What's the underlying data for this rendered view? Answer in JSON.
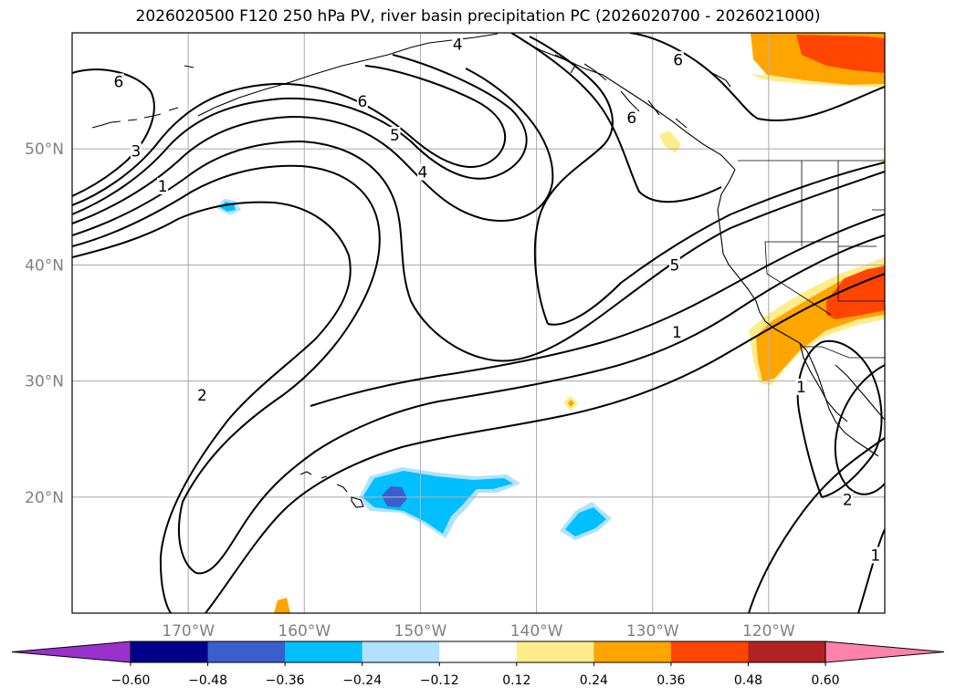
{
  "title": "2026020500 F120 250 hPa PV, river basin precipitation PC (2026020700 - 2026021000)",
  "chart_data": {
    "type": "map-contour",
    "title": "2026020500 F120 250 hPa PV, river basin precipitation PC (2026020700 - 2026021000)",
    "lon_range": [
      -180,
      -110
    ],
    "lat_range": [
      10,
      60
    ],
    "lat_ticks": [
      "20°N",
      "30°N",
      "40°N",
      "50°N"
    ],
    "lat_tick_values": [
      20,
      30,
      40,
      50
    ],
    "lon_ticks": [
      "170°W",
      "160°W",
      "150°W",
      "140°W",
      "130°W",
      "120°W"
    ],
    "lon_tick_values": [
      -170,
      -160,
      -150,
      -140,
      -130,
      -120
    ],
    "grid": true,
    "contour_variable": "250 hPa PV",
    "contour_levels": [
      1,
      2,
      3,
      4,
      5,
      6
    ],
    "contour_labels": [
      {
        "text": "6",
        "lon": -176,
        "lat": 55.8
      },
      {
        "text": "3",
        "lon": -174.5,
        "lat": 49.8
      },
      {
        "text": "1",
        "lon": -172.2,
        "lat": 46.8
      },
      {
        "text": "6",
        "lon": -155,
        "lat": 54.1
      },
      {
        "text": "5",
        "lon": -152.2,
        "lat": 51.2
      },
      {
        "text": "4",
        "lon": -146.8,
        "lat": 59.0
      },
      {
        "text": "4",
        "lon": -149.8,
        "lat": 48.0
      },
      {
        "text": "2",
        "lon": -168.8,
        "lat": 28.8
      },
      {
        "text": "6",
        "lon": -127.8,
        "lat": 57.7
      },
      {
        "text": "6",
        "lon": -131.8,
        "lat": 52.7
      },
      {
        "text": "5",
        "lon": -128.1,
        "lat": 40.0
      },
      {
        "text": "1",
        "lon": -127.9,
        "lat": 34.2
      },
      {
        "text": "1",
        "lon": -117.2,
        "lat": 29.5
      },
      {
        "text": "2",
        "lon": -113.2,
        "lat": 19.8
      },
      {
        "text": "1",
        "lon": -110.8,
        "lat": 15.0
      }
    ],
    "fill_variable": "river basin precipitation PC",
    "colorbar": {
      "boundaries": [
        -0.6,
        -0.48,
        -0.36,
        -0.24,
        -0.12,
        0.12,
        0.24,
        0.36,
        0.48,
        0.6
      ],
      "tick_labels": [
        "−0.60",
        "−0.48",
        "−0.36",
        "−0.24",
        "−0.12",
        "0.12",
        "0.24",
        "0.36",
        "0.48",
        "0.60"
      ],
      "colors": [
        "#9932cc",
        "#00008b",
        "#3a5fcd",
        "#00bfff",
        "#b0e2ff",
        "#ffffff",
        "#ffec8b",
        "#ffa500",
        "#ff4500",
        "#b22222",
        "#ff82ab"
      ],
      "extend": "both"
    }
  }
}
